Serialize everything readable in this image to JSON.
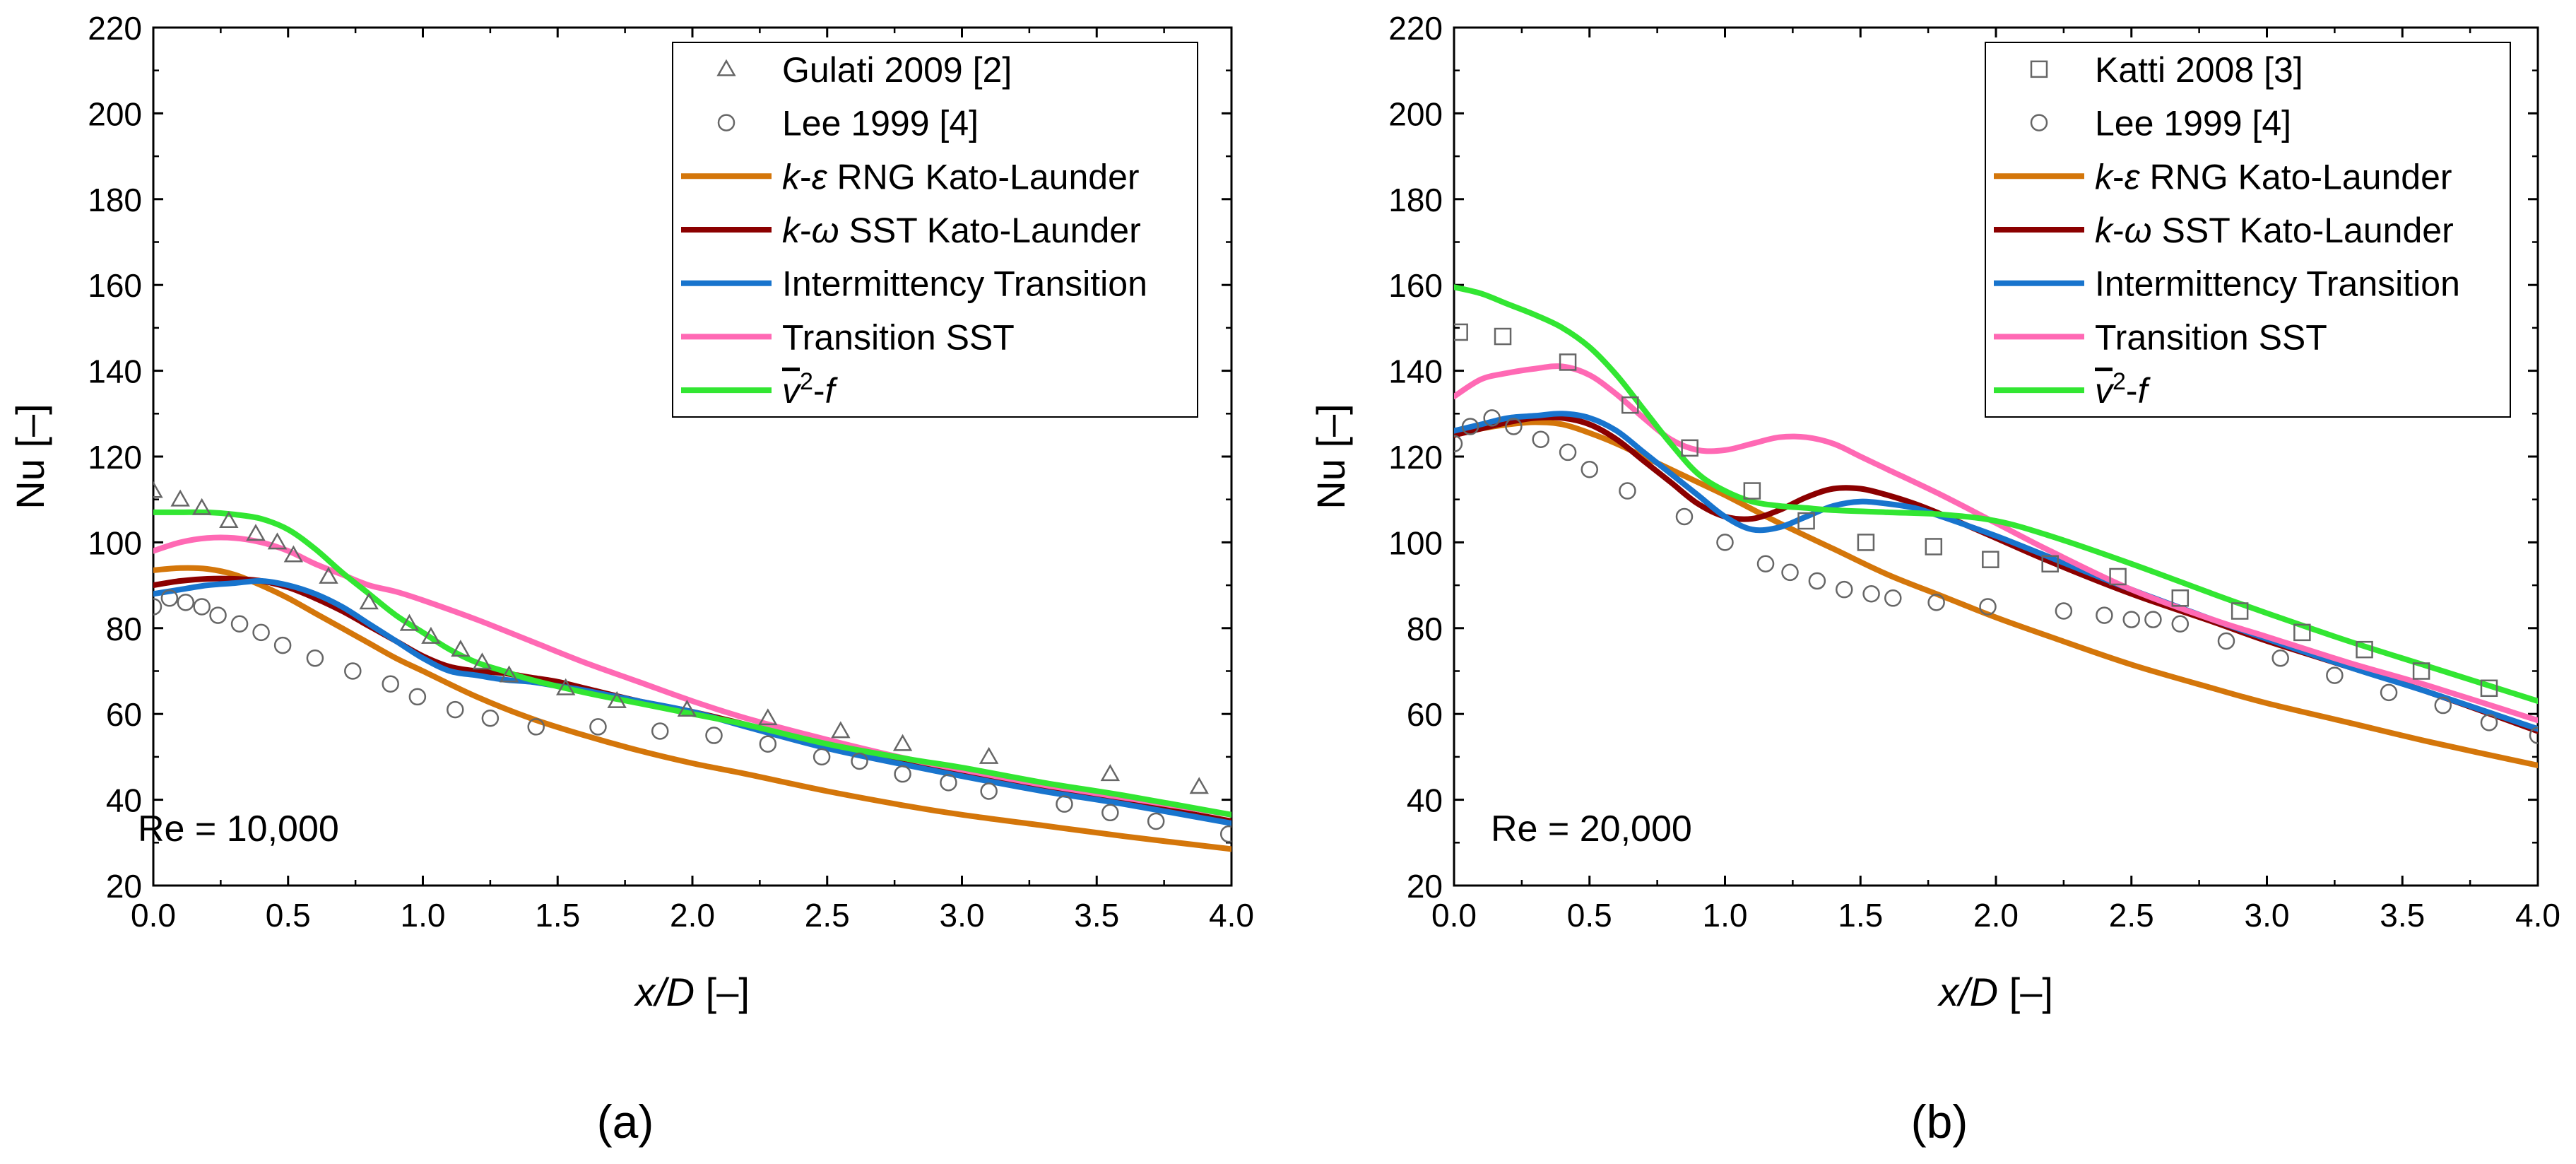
{
  "colors": {
    "krng": "#d4760a",
    "ksst": "#8b0000",
    "inter": "#1874cd",
    "tsst": "#ff69b4",
    "v2f": "#32e632",
    "marker": "#666666"
  },
  "chart_data": [
    {
      "type": "line",
      "panel_label": "(a)",
      "annotation": "Re = 10,000",
      "xlabel_var": "x/D",
      "xlabel_unit": " [–]",
      "ylabel": "Nu [–]",
      "xlim": [
        0,
        4
      ],
      "ylim": [
        20,
        220
      ],
      "xticks": [
        "0.0",
        "0.5",
        "1.0",
        "1.5",
        "2.0",
        "2.5",
        "3.0",
        "3.5",
        "4.0"
      ],
      "yticks": [
        "20",
        "40",
        "60",
        "80",
        "100",
        "120",
        "140",
        "160",
        "180",
        "200",
        "220"
      ],
      "legend_position": "top-right",
      "series": [
        {
          "name": "Gulati 2009 [2]",
          "style": "marker",
          "marker": "triangle",
          "x": [
            0.0,
            0.1,
            0.18,
            0.28,
            0.38,
            0.46,
            0.52,
            0.65,
            0.8,
            0.95,
            1.03,
            1.14,
            1.22,
            1.32,
            1.53,
            1.72,
            1.98,
            2.28,
            2.55,
            2.78,
            3.1,
            3.55,
            3.88
          ],
          "y": [
            112,
            110,
            108,
            105,
            102,
            100,
            97,
            92,
            86,
            81,
            78,
            75,
            72,
            69,
            66,
            63,
            61,
            59,
            56,
            53,
            50,
            46,
            43
          ]
        },
        {
          "name": "Lee 1999 [4]",
          "style": "marker",
          "marker": "circle",
          "x": [
            0.0,
            0.06,
            0.12,
            0.18,
            0.24,
            0.32,
            0.4,
            0.48,
            0.6,
            0.74,
            0.88,
            0.98,
            1.12,
            1.25,
            1.42,
            1.65,
            1.88,
            2.08,
            2.28,
            2.48,
            2.62,
            2.78,
            2.95,
            3.1,
            3.38,
            3.55,
            3.72,
            3.99
          ],
          "y": [
            85,
            87,
            86,
            85,
            83,
            81,
            79,
            76,
            73,
            70,
            67,
            64,
            61,
            59,
            57,
            57,
            56,
            55,
            53,
            50,
            49,
            46,
            44,
            42,
            39,
            37,
            35,
            32
          ]
        },
        {
          "name": "k-ε RNG Kato-Launder",
          "style": "line",
          "colorKey": "krng",
          "x": [
            0,
            0.1,
            0.2,
            0.3,
            0.4,
            0.5,
            0.6,
            0.7,
            0.8,
            0.9,
            1.0,
            1.2,
            1.4,
            1.6,
            1.8,
            2.0,
            2.2,
            2.5,
            2.8,
            3.0,
            3.3,
            3.6,
            4.0
          ],
          "y": [
            93.5,
            94,
            93.8,
            92.5,
            90,
            87,
            83.5,
            80,
            76.5,
            73,
            70,
            64,
            59,
            55,
            51.5,
            48.5,
            46,
            42,
            38.5,
            36.5,
            34,
            31.5,
            28.5
          ]
        },
        {
          "name": "k-ω SST Kato-Launder",
          "style": "line",
          "colorKey": "ksst",
          "x": [
            0,
            0.1,
            0.2,
            0.3,
            0.4,
            0.5,
            0.6,
            0.7,
            0.8,
            0.9,
            1.0,
            1.1,
            1.2,
            1.3,
            1.4,
            1.5,
            1.6,
            1.8,
            2.0,
            2.2,
            2.5,
            2.8,
            3.0,
            3.3,
            3.6,
            4.0
          ],
          "y": [
            90,
            91,
            91.5,
            91.5,
            91,
            89.5,
            87,
            84,
            80.5,
            77,
            73.5,
            71,
            70,
            69.5,
            68.5,
            67.5,
            66,
            63,
            60.5,
            57.5,
            52.5,
            48.5,
            46,
            42.5,
            39.5,
            35
          ]
        },
        {
          "name": "Intermittency Transition",
          "style": "line",
          "colorKey": "inter",
          "x": [
            0,
            0.1,
            0.2,
            0.3,
            0.4,
            0.5,
            0.6,
            0.7,
            0.8,
            0.9,
            1.0,
            1.1,
            1.2,
            1.3,
            1.4,
            1.5,
            1.6,
            1.8,
            2.0,
            2.2,
            2.5,
            2.8,
            3.0,
            3.3,
            3.6,
            4.0
          ],
          "y": [
            88,
            89,
            90,
            90.5,
            91,
            90,
            88,
            85,
            81,
            77,
            73,
            70,
            69,
            68,
            67.5,
            66.5,
            65.5,
            63,
            60.5,
            57,
            52,
            48,
            45.5,
            42,
            39,
            34.5
          ]
        },
        {
          "name": "Transition SST",
          "style": "line",
          "colorKey": "tsst",
          "x": [
            0,
            0.1,
            0.2,
            0.3,
            0.4,
            0.5,
            0.6,
            0.7,
            0.8,
            0.9,
            1.0,
            1.2,
            1.4,
            1.6,
            1.8,
            2.0,
            2.2,
            2.5,
            2.8,
            3.0,
            3.3,
            3.6,
            4.0
          ],
          "y": [
            98,
            100,
            101,
            101,
            100,
            98,
            95,
            92.5,
            90,
            88.5,
            86.5,
            82,
            77,
            72,
            67.5,
            63,
            59,
            54,
            49.5,
            47,
            43.5,
            40.5,
            36.5
          ]
        },
        {
          "name": "v2-f",
          "style": "line",
          "colorKey": "v2f",
          "x": [
            0,
            0.1,
            0.2,
            0.3,
            0.4,
            0.5,
            0.6,
            0.7,
            0.8,
            0.9,
            1.0,
            1.1,
            1.2,
            1.3,
            1.4,
            1.6,
            1.8,
            2.0,
            2.2,
            2.5,
            2.8,
            3.0,
            3.3,
            3.6,
            4.0
          ],
          "y": [
            107,
            107,
            107,
            106.5,
            105.5,
            103,
            98.5,
            93,
            88,
            83,
            79,
            75,
            72,
            70,
            68,
            65,
            62.5,
            60,
            57.5,
            53,
            49.5,
            47.5,
            44,
            41,
            36.5
          ]
        }
      ]
    },
    {
      "type": "line",
      "panel_label": "(b)",
      "annotation": "Re = 20,000",
      "xlabel_var": "x/D",
      "xlabel_unit": " [–]",
      "ylabel": "Nu [–]",
      "xlim": [
        0,
        4
      ],
      "ylim": [
        20,
        220
      ],
      "xticks": [
        "0.0",
        "0.5",
        "1.0",
        "1.5",
        "2.0",
        "2.5",
        "3.0",
        "3.5",
        "4.0"
      ],
      "yticks": [
        "20",
        "40",
        "60",
        "80",
        "100",
        "120",
        "140",
        "160",
        "180",
        "200",
        "220"
      ],
      "legend_position": "top-right",
      "series": [
        {
          "name": "Katti 2008 [3]",
          "style": "marker",
          "marker": "square",
          "x": [
            0.02,
            0.18,
            0.42,
            0.65,
            0.87,
            1.1,
            1.3,
            1.52,
            1.77,
            1.98,
            2.2,
            2.45,
            2.68,
            2.9,
            3.13,
            3.36,
            3.57,
            3.82
          ],
          "y": [
            149,
            148,
            142,
            132,
            122,
            112,
            105,
            100,
            99,
            96,
            95,
            92,
            87,
            84,
            79,
            75,
            70,
            66
          ]
        },
        {
          "name": "Lee 1999 [4]",
          "style": "marker",
          "marker": "circle",
          "x": [
            0.0,
            0.06,
            0.14,
            0.22,
            0.32,
            0.42,
            0.5,
            0.64,
            0.85,
            1.0,
            1.15,
            1.24,
            1.34,
            1.44,
            1.54,
            1.62,
            1.78,
            1.97,
            2.25,
            2.4,
            2.5,
            2.58,
            2.68,
            2.85,
            3.05,
            3.25,
            3.45,
            3.65,
            3.82,
            4.0
          ],
          "y": [
            123,
            127,
            129,
            127,
            124,
            121,
            117,
            112,
            106,
            100,
            95,
            93,
            91,
            89,
            88,
            87,
            86,
            85,
            84,
            83,
            82,
            82,
            81,
            77,
            73,
            69,
            65,
            62,
            58,
            55
          ]
        },
        {
          "name": "k-ε RNG Kato-Launder",
          "style": "line",
          "colorKey": "krng",
          "x": [
            0,
            0.1,
            0.2,
            0.3,
            0.4,
            0.5,
            0.6,
            0.7,
            0.8,
            0.9,
            1.0,
            1.2,
            1.4,
            1.6,
            1.8,
            2.0,
            2.2,
            2.5,
            2.8,
            3.0,
            3.3,
            3.6,
            4.0
          ],
          "y": [
            125,
            126.5,
            127.5,
            128,
            127.5,
            125.5,
            123,
            120,
            117,
            114,
            111,
            104.5,
            98.5,
            92.5,
            87.5,
            82.5,
            78,
            71.5,
            66,
            62.5,
            58,
            53.5,
            48
          ]
        },
        {
          "name": "k-ω SST Kato-Launder",
          "style": "line",
          "colorKey": "ksst",
          "x": [
            0,
            0.1,
            0.2,
            0.3,
            0.4,
            0.5,
            0.6,
            0.7,
            0.8,
            0.9,
            1.0,
            1.1,
            1.2,
            1.3,
            1.4,
            1.5,
            1.6,
            1.7,
            1.8,
            2.0,
            2.2,
            2.5,
            2.8,
            3.0,
            3.3,
            3.6,
            4.0
          ],
          "y": [
            125,
            126.5,
            128,
            129,
            129,
            127.5,
            124,
            119,
            114,
            109,
            106,
            105.5,
            107.5,
            110.5,
            112.5,
            112.5,
            111,
            109,
            106.5,
            101,
            95.5,
            88,
            81.5,
            77,
            71,
            65,
            56
          ]
        },
        {
          "name": "Intermittency Transition",
          "style": "line",
          "colorKey": "inter",
          "x": [
            0,
            0.1,
            0.2,
            0.3,
            0.4,
            0.5,
            0.6,
            0.7,
            0.8,
            0.9,
            1.0,
            1.1,
            1.2,
            1.3,
            1.4,
            1.5,
            1.6,
            1.7,
            1.8,
            2.0,
            2.2,
            2.5,
            2.8,
            3.0,
            3.3,
            3.6,
            4.0
          ],
          "y": [
            126,
            127.5,
            129,
            129.5,
            130,
            129,
            126,
            121,
            116,
            111,
            106,
            103,
            103.5,
            106,
            108.5,
            109.5,
            109,
            108,
            106,
            101.5,
            96.5,
            89,
            82,
            77.5,
            71,
            65,
            56.5
          ]
        },
        {
          "name": "Transition SST",
          "style": "line",
          "colorKey": "tsst",
          "x": [
            0,
            0.1,
            0.2,
            0.3,
            0.4,
            0.5,
            0.6,
            0.7,
            0.8,
            0.9,
            1.0,
            1.1,
            1.2,
            1.3,
            1.4,
            1.5,
            1.6,
            1.8,
            2.0,
            2.2,
            2.5,
            2.8,
            3.0,
            3.3,
            3.6,
            4.0
          ],
          "y": [
            134,
            138,
            139.5,
            140.5,
            141,
            139,
            134.5,
            129,
            124,
            121.5,
            121.5,
            123,
            124.5,
            124.5,
            123,
            120,
            117,
            111,
            104.5,
            98,
            89,
            82,
            78,
            72,
            66.5,
            58.5
          ]
        },
        {
          "name": "v2-f",
          "style": "line",
          "colorKey": "v2f",
          "x": [
            0,
            0.1,
            0.2,
            0.3,
            0.4,
            0.5,
            0.6,
            0.7,
            0.8,
            0.9,
            1.0,
            1.1,
            1.2,
            1.3,
            1.4,
            1.6,
            1.8,
            2.0,
            2.2,
            2.5,
            2.8,
            3.0,
            3.3,
            3.6,
            4.0
          ],
          "y": [
            159.5,
            158,
            155.5,
            153,
            150,
            145.5,
            139,
            131,
            123,
            116,
            112,
            109.5,
            108.5,
            108,
            107.5,
            107,
            106.5,
            105,
            101.5,
            95,
            88,
            83.5,
            77,
            71,
            63
          ]
        }
      ]
    }
  ]
}
